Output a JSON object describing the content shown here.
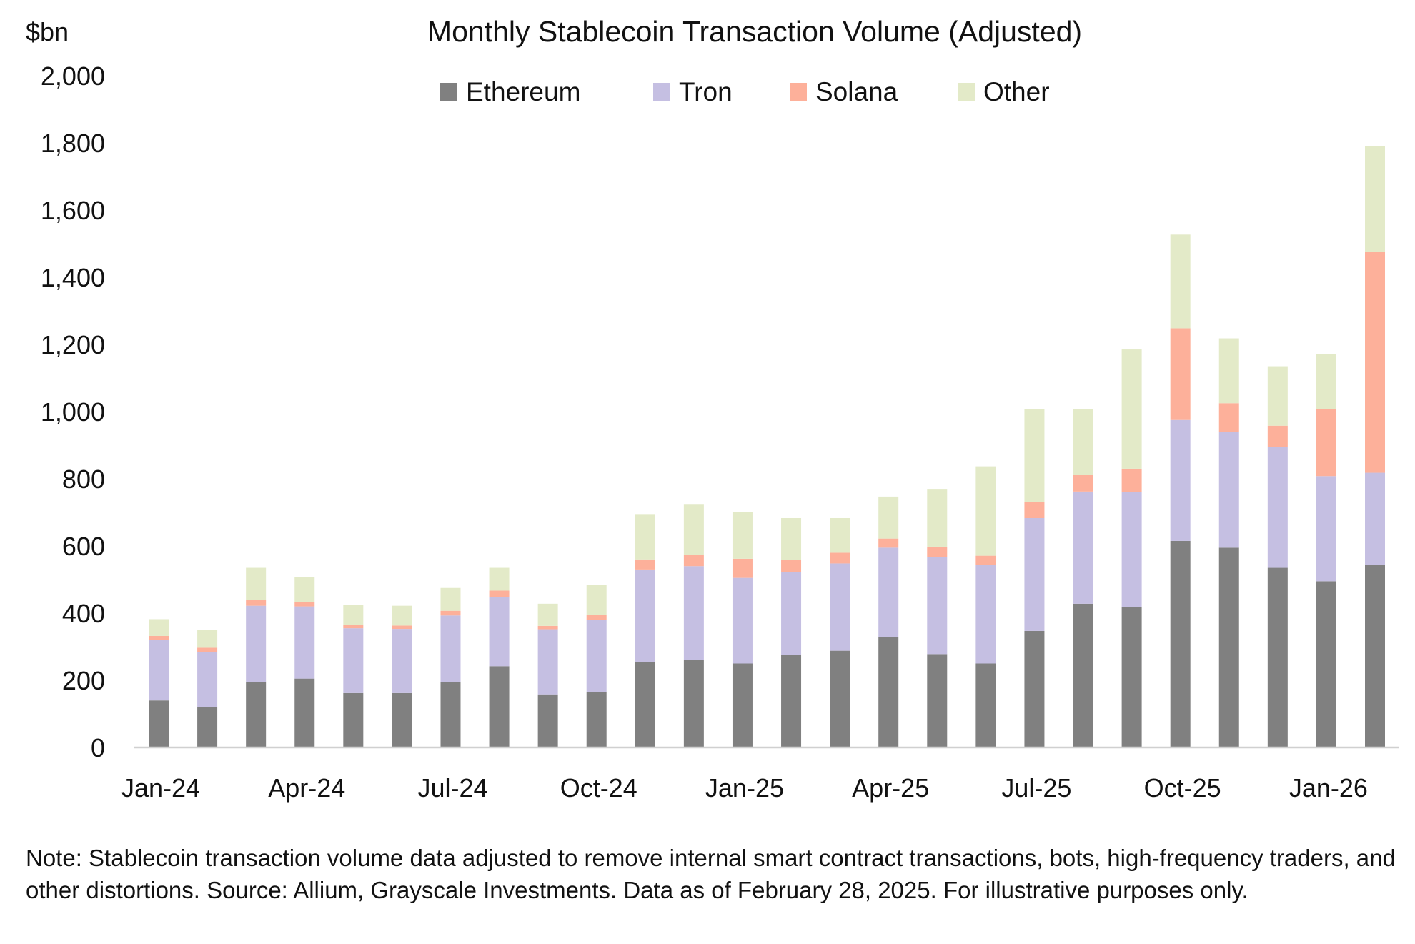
{
  "chart_data": {
    "type": "bar",
    "stacked": true,
    "title": "Monthly Stablecoin Transaction Volume (Adjusted)",
    "ylabel": "$bn",
    "xlabel": "",
    "ylim": [
      0,
      2000
    ],
    "yticks": [
      0,
      200,
      400,
      600,
      800,
      1000,
      1200,
      1400,
      1600,
      1800,
      2000
    ],
    "ytick_labels": [
      "0",
      "200",
      "400",
      "600",
      "800",
      "1,000",
      "1,200",
      "1,400",
      "1,600",
      "1,800",
      "2,000"
    ],
    "grid": false,
    "legend_position": "top",
    "categories": [
      "Jan-24",
      "Feb-24",
      "Mar-24",
      "Apr-24",
      "May-24",
      "Jun-24",
      "Jul-24",
      "Aug-24",
      "Sep-24",
      "Oct-24",
      "Nov-24",
      "Dec-24",
      "Jan-25",
      "Feb-25",
      "Mar-25",
      "Apr-25",
      "May-25",
      "Jun-25",
      "Jul-25",
      "Aug-25",
      "Sep-25",
      "Oct-25",
      "Nov-25",
      "Dec-25",
      "Jan-26",
      "Feb-26"
    ],
    "xtick_labels": [
      "Jan-24",
      "Apr-24",
      "Jul-24",
      "Oct-24",
      "Jan-25",
      "Apr-25",
      "Jul-25",
      "Oct-25",
      "Jan-26"
    ],
    "series": [
      {
        "name": "Ethereum",
        "color": "#808080",
        "values": [
          140,
          120,
          195,
          205,
          162,
          162,
          195,
          242,
          158,
          165,
          255,
          260,
          250,
          275,
          288,
          328,
          278,
          250,
          347,
          428,
          418,
          615,
          595,
          535,
          495,
          543
        ]
      },
      {
        "name": "Tron",
        "color": "#c5bfe2",
        "values": [
          180,
          165,
          227,
          215,
          193,
          191,
          198,
          206,
          194,
          215,
          275,
          280,
          255,
          247,
          260,
          267,
          290,
          293,
          336,
          334,
          342,
          360,
          345,
          360,
          313,
          275
        ]
      },
      {
        "name": "Solana",
        "color": "#fdb09a",
        "values": [
          12,
          12,
          18,
          12,
          10,
          10,
          14,
          19,
          10,
          15,
          30,
          33,
          57,
          36,
          32,
          27,
          30,
          28,
          47,
          50,
          70,
          273,
          85,
          63,
          200,
          657
        ]
      },
      {
        "name": "Other",
        "color": "#e3eac8",
        "values": [
          50,
          53,
          95,
          75,
          60,
          59,
          68,
          68,
          66,
          90,
          135,
          152,
          140,
          125,
          103,
          125,
          172,
          266,
          277,
          195,
          355,
          279,
          193,
          177,
          164,
          315
        ]
      }
    ]
  },
  "note": "Note: Stablecoin transaction volume data adjusted to remove internal smart contract transactions, bots, high-frequency traders, and other distortions. Source: Allium, Grayscale Investments. Data as of February 28, 2025. For illustrative purposes only."
}
